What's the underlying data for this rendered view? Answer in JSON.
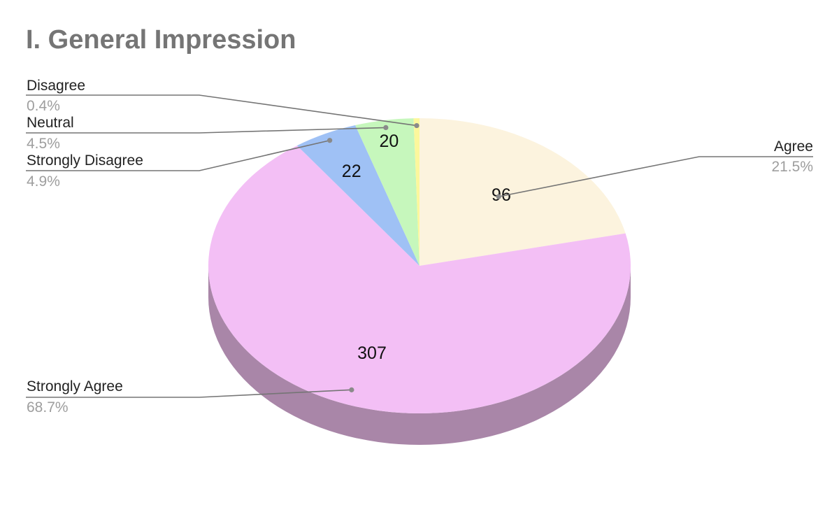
{
  "chart_data": {
    "type": "pie",
    "title": "I. General Impression",
    "style": "3d",
    "slices": [
      {
        "label": "Agree",
        "value": 96,
        "percent": "21.5%",
        "color": "#fcf3de",
        "side_color": "#b0a99a"
      },
      {
        "label": "Strongly Agree",
        "value": 307,
        "percent": "68.7%",
        "color": "#f3bff5",
        "side_color": "#a986a8"
      },
      {
        "label": "Strongly Disagree",
        "value": 22,
        "percent": "4.9%",
        "color": "#9fc1f5",
        "side_color": "#6f87ab"
      },
      {
        "label": "Neutral",
        "value": 20,
        "percent": "4.5%",
        "color": "#c6f7bc",
        "side_color": "#8aad83"
      },
      {
        "label": "Disagree",
        "value": 2,
        "percent": "0.4%",
        "color": "#fcf79c",
        "side_color": "#b0ad6d"
      }
    ]
  }
}
